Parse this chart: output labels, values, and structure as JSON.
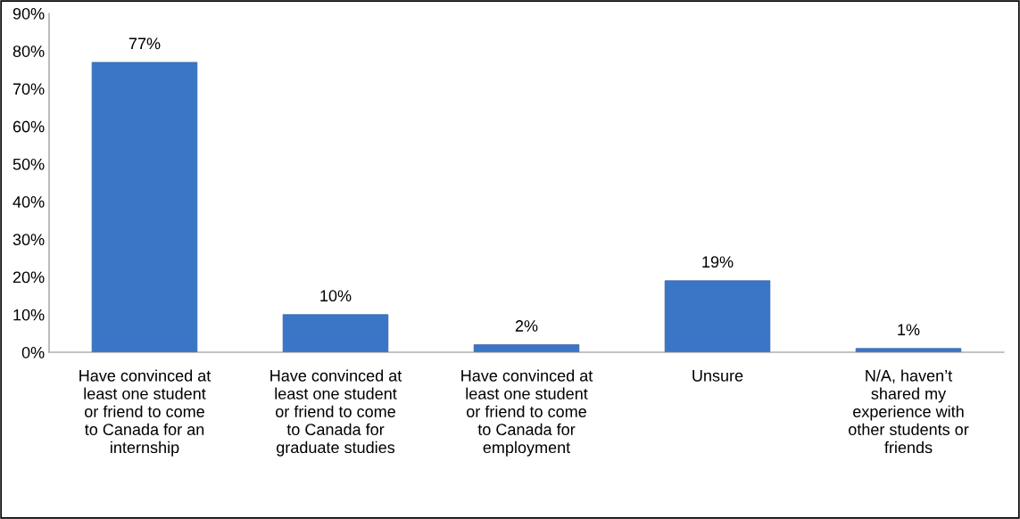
{
  "chart_data": {
    "type": "bar",
    "categories": [
      "Have convinced at\nleast one student\nor friend to come\nto Canada for an\ninternship",
      "Have convinced at\nleast one student\nor friend to come\nto Canada for\ngraduate studies",
      "Have convinced at\nleast one student\nor friend to come\nto Canada for\nemployment",
      "Unsure",
      "N/A, haven’t\nshared my\nexperience with\nother students or\nfriends"
    ],
    "values": [
      77,
      10,
      2,
      19,
      1
    ],
    "value_labels": [
      "77%",
      "10%",
      "2%",
      "19%",
      "1%"
    ],
    "color": "#3b76c6",
    "ylim": [
      0,
      90
    ],
    "yticks": [
      {
        "value": 0,
        "label": "0%"
      },
      {
        "value": 10,
        "label": "10%"
      },
      {
        "value": 20,
        "label": "20%"
      },
      {
        "value": 30,
        "label": "30%"
      },
      {
        "value": 40,
        "label": "40%"
      },
      {
        "value": 50,
        "label": "50%"
      },
      {
        "value": 60,
        "label": "60%"
      },
      {
        "value": 70,
        "label": "70%"
      },
      {
        "value": 80,
        "label": "80%"
      },
      {
        "value": 90,
        "label": "90%"
      }
    ],
    "grid": false,
    "legend": false
  }
}
